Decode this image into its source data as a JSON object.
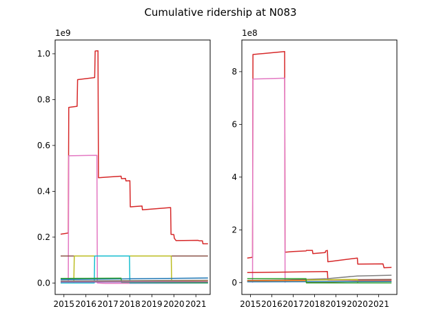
{
  "figure": {
    "title": "Cumulative ridership at N083"
  },
  "chart_data": [
    {
      "type": "line",
      "title": "",
      "xlabel": "",
      "ylabel": "",
      "y_multiplier": "1e9",
      "xlim": [
        2014.6,
        2021.65
      ],
      "ylim": [
        -0.05,
        1.06
      ],
      "x_ticks": [
        2015,
        2016,
        2017,
        2018,
        2019,
        2020,
        2021
      ],
      "x_tick_labels": [
        "2015",
        "2016",
        "2017",
        "2018",
        "2019",
        "2020",
        "2021"
      ],
      "y_ticks": [
        0.0,
        0.2,
        0.4,
        0.6,
        0.8,
        1.0
      ],
      "y_tick_labels": [
        "0.0",
        "0.2",
        "0.4",
        "0.6",
        "0.8",
        "1.0"
      ],
      "grid": false,
      "series": [
        {
          "color": "#d62728",
          "points": [
            [
              2014.85,
              0.213
            ],
            [
              2015.2,
              0.218
            ],
            [
              2015.22,
              0.766
            ],
            [
              2015.6,
              0.771
            ],
            [
              2015.62,
              0.887
            ],
            [
              2016.4,
              0.896
            ],
            [
              2016.42,
              1.012
            ],
            [
              2016.55,
              1.013
            ],
            [
              2016.57,
              0.459
            ],
            [
              2017.0,
              0.462
            ],
            [
              2017.6,
              0.466
            ],
            [
              2017.62,
              0.455
            ],
            [
              2017.8,
              0.456
            ],
            [
              2017.82,
              0.445
            ],
            [
              2018.0,
              0.446
            ],
            [
              2018.02,
              0.332
            ],
            [
              2018.55,
              0.336
            ],
            [
              2018.57,
              0.319
            ],
            [
              2019.85,
              0.329
            ],
            [
              2019.87,
              0.212
            ],
            [
              2020.0,
              0.211
            ],
            [
              2020.02,
              0.195
            ],
            [
              2020.1,
              0.185
            ],
            [
              2021.1,
              0.186
            ],
            [
              2021.15,
              0.184
            ],
            [
              2021.3,
              0.184
            ],
            [
              2021.32,
              0.171
            ],
            [
              2021.55,
              0.171
            ]
          ]
        },
        {
          "color": "#e377c2",
          "points": [
            [
              2015.2,
              0.0
            ],
            [
              2015.22,
              0.555
            ],
            [
              2016.5,
              0.557
            ],
            [
              2016.52,
              0.0
            ],
            [
              2016.9,
              -0.002
            ],
            [
              2021.55,
              0.0
            ]
          ]
        },
        {
          "color": "#8c564b",
          "points": [
            [
              2014.85,
              0.118
            ],
            [
              2021.55,
              0.118
            ]
          ]
        },
        {
          "color": "#bcbd22",
          "points": [
            [
              2015.45,
              0.0
            ],
            [
              2015.47,
              0.118
            ],
            [
              2019.88,
              0.118
            ],
            [
              2019.9,
              0.0
            ]
          ]
        },
        {
          "color": "#17becf",
          "points": [
            [
              2014.85,
              0.0
            ],
            [
              2016.38,
              0.0
            ],
            [
              2016.4,
              0.118
            ],
            [
              2017.98,
              0.118
            ],
            [
              2018.0,
              0.0
            ],
            [
              2021.55,
              0.0
            ]
          ]
        },
        {
          "color": "#1f77b4",
          "points": [
            [
              2014.85,
              0.015
            ],
            [
              2017.8,
              0.018
            ],
            [
              2021.55,
              0.022
            ]
          ]
        },
        {
          "color": "#ff7f0e",
          "points": [
            [
              2014.85,
              0.007
            ],
            [
              2021.55,
              0.01
            ]
          ]
        },
        {
          "color": "#2ca02c",
          "points": [
            [
              2014.85,
              0.02
            ],
            [
              2017.6,
              0.021
            ],
            [
              2017.62,
              0.003
            ],
            [
              2021.55,
              0.001
            ]
          ]
        },
        {
          "color": "#9467bd",
          "points": [
            [
              2014.85,
              0.004
            ],
            [
              2021.55,
              0.005
            ]
          ]
        },
        {
          "color": "#7f7f7f",
          "points": [
            [
              2014.85,
              0.009
            ],
            [
              2021.55,
              0.012
            ]
          ]
        }
      ]
    },
    {
      "type": "line",
      "title": "",
      "xlabel": "",
      "ylabel": "",
      "y_multiplier": "1e8",
      "xlim": [
        2014.6,
        2021.85
      ],
      "ylim": [
        -0.45,
        9.2
      ],
      "x_ticks": [
        2015,
        2016,
        2017,
        2018,
        2019,
        2020,
        2021
      ],
      "x_tick_labels": [
        "2015",
        "2016",
        "2017",
        "2018",
        "2019",
        "2020",
        "2021"
      ],
      "y_ticks": [
        0,
        2,
        4,
        6,
        8
      ],
      "y_tick_labels": [
        "0",
        "2",
        "4",
        "6",
        "8"
      ],
      "grid": false,
      "series": [
        {
          "color": "#d62728",
          "points": [
            [
              2014.85,
              0.93
            ],
            [
              2015.1,
              0.96
            ],
            [
              2015.12,
              8.65
            ],
            [
              2016.6,
              8.76
            ],
            [
              2016.62,
              1.15
            ],
            [
              2017.0,
              1.18
            ],
            [
              2017.6,
              1.2
            ],
            [
              2017.62,
              1.22
            ],
            [
              2017.9,
              1.22
            ],
            [
              2017.92,
              1.1
            ],
            [
              2018.5,
              1.14
            ],
            [
              2018.52,
              1.2
            ],
            [
              2018.6,
              1.22
            ],
            [
              2018.62,
              0.79
            ],
            [
              2020.0,
              0.93
            ],
            [
              2020.02,
              0.7
            ],
            [
              2021.2,
              0.71
            ],
            [
              2021.25,
              0.56
            ],
            [
              2021.6,
              0.58
            ]
          ]
        },
        {
          "color": "#e377c2",
          "points": [
            [
              2015.1,
              0.0
            ],
            [
              2015.12,
              7.72
            ],
            [
              2016.6,
              7.75
            ],
            [
              2016.62,
              0.0
            ]
          ]
        },
        {
          "color": "#d62728",
          "points": [
            [
              2014.85,
              0.38
            ],
            [
              2018.6,
              0.42
            ],
            [
              2018.62,
              0.1
            ],
            [
              2021.6,
              0.1
            ]
          ]
        },
        {
          "color": "#7f7f7f",
          "points": [
            [
              2014.85,
              0.05
            ],
            [
              2018.6,
              0.15
            ],
            [
              2020.0,
              0.25
            ],
            [
              2021.6,
              0.28
            ]
          ]
        },
        {
          "color": "#8c564b",
          "points": [
            [
              2014.85,
              0.08
            ],
            [
              2021.6,
              0.12
            ]
          ]
        },
        {
          "color": "#ff7f0e",
          "points": [
            [
              2014.85,
              0.06
            ],
            [
              2017.6,
              0.08
            ],
            [
              2017.62,
              0.0
            ],
            [
              2020.0,
              0.05
            ],
            [
              2021.6,
              0.05
            ]
          ]
        },
        {
          "color": "#bcbd22",
          "points": [
            [
              2017.6,
              0.0
            ],
            [
              2017.62,
              0.1
            ],
            [
              2020.0,
              0.12
            ],
            [
              2020.02,
              0.0
            ]
          ]
        },
        {
          "color": "#1f77b4",
          "points": [
            [
              2014.85,
              0.03
            ],
            [
              2021.6,
              0.04
            ]
          ]
        },
        {
          "color": "#2ca02c",
          "points": [
            [
              2014.85,
              0.15
            ],
            [
              2017.6,
              0.15
            ],
            [
              2017.62,
              -0.01
            ],
            [
              2021.6,
              -0.01
            ]
          ]
        }
      ]
    }
  ]
}
